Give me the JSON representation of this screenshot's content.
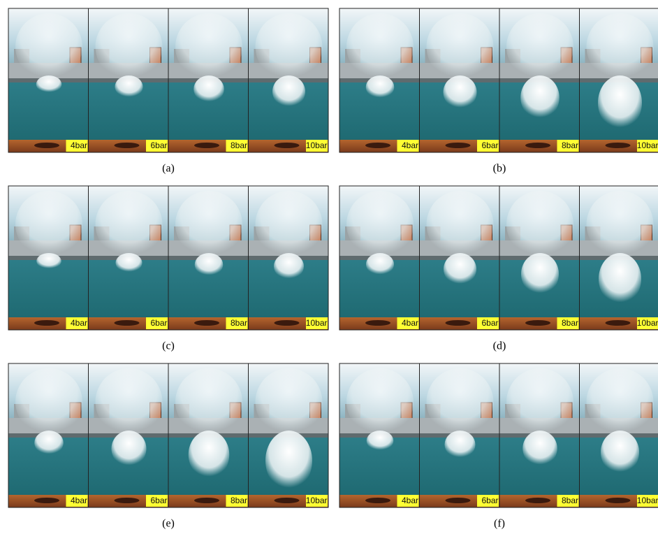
{
  "panels": [
    {
      "caption": "(a)",
      "frames": [
        "4bar",
        "6bar",
        "8bar",
        "10bar"
      ]
    },
    {
      "caption": "(b)",
      "frames": [
        "4bar",
        "6bar",
        "8bar",
        "10bar"
      ]
    },
    {
      "caption": "(c)",
      "frames": [
        "4bar",
        "6bar",
        "8bar",
        "10bar"
      ]
    },
    {
      "caption": "(d)",
      "frames": [
        "4bar",
        "6bar",
        "8bar",
        "10bar"
      ]
    },
    {
      "caption": "(e)",
      "frames": [
        "4bar",
        "6bar",
        "8bar",
        "10bar"
      ]
    },
    {
      "caption": "(f)",
      "frames": [
        "4bar",
        "6bar",
        "8bar",
        "10bar"
      ]
    }
  ]
}
